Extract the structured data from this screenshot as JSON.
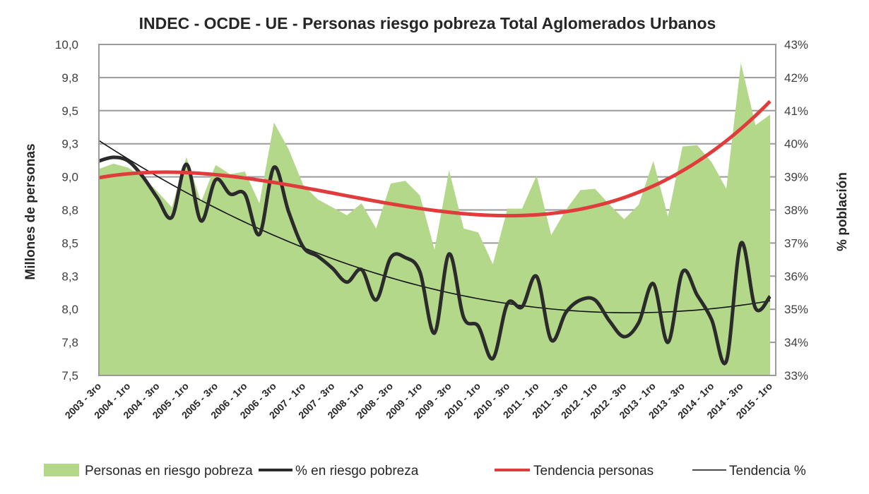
{
  "chart_data": {
    "type": "area+line",
    "title": "INDEC - OCDE - UE - Personas riesgo pobreza Total Aglomerados Urbanos",
    "ylabel": "Millones de personas",
    "y2label": "% población",
    "ylim": [
      7.5,
      10.0
    ],
    "y2lim": [
      33,
      43
    ],
    "y_ticks": [
      "7,5",
      "7,8",
      "8,0",
      "8,3",
      "8,5",
      "8,8",
      "9,0",
      "9,3",
      "9,5",
      "9,8",
      "10,0"
    ],
    "y2_ticks": [
      "33%",
      "34%",
      "35%",
      "36%",
      "37%",
      "38%",
      "39%",
      "40%",
      "41%",
      "42%",
      "43%"
    ],
    "grid": true,
    "legend_position": "bottom",
    "x_labels": [
      "2003 - 3ro",
      "2004 - 1ro",
      "2004 - 3ro",
      "2005 - 1ro",
      "2005 - 3ro",
      "2006 - 1ro",
      "2006 - 3ro",
      "2007 - 1ro",
      "2007 - 3ro",
      "2008 - 1ro",
      "2008 - 3ro",
      "2009 - 1ro",
      "2009 - 3ro",
      "2010 - 1ro",
      "2010 - 3ro",
      "2011 - 1ro",
      "2011 - 3ro",
      "2012 - 1ro",
      "2012 - 3ro",
      "2013 - 1ro",
      "2013 - 3ro",
      "2014 - 1ro",
      "2014 - 3ro",
      "2015 - 1ro"
    ],
    "series": [
      {
        "name": "Personas en riesgo pobreza",
        "type": "area",
        "axis": "left",
        "color": "#b3d88a",
        "values": [
          9.06,
          9.1,
          9.07,
          9.0,
          8.89,
          8.77,
          9.15,
          8.81,
          9.09,
          9.02,
          9.04,
          8.8,
          9.41,
          9.21,
          8.94,
          8.83,
          8.77,
          8.71,
          8.8,
          8.61,
          8.95,
          8.97,
          8.86,
          8.45,
          9.05,
          8.61,
          8.58,
          8.34,
          8.76,
          8.76,
          9.01,
          8.56,
          8.75,
          8.9,
          8.91,
          8.79,
          8.68,
          8.79,
          9.12,
          8.7,
          9.23,
          9.24,
          9.11,
          8.91,
          9.86,
          9.39,
          9.47
        ]
      },
      {
        "name": "% en riesgo pobreza",
        "type": "line",
        "axis": "right",
        "color": "#2b2b2b",
        "values": [
          39.48,
          39.59,
          39.48,
          39.01,
          38.37,
          37.78,
          39.38,
          37.67,
          38.91,
          38.48,
          38.48,
          37.26,
          39.29,
          37.95,
          36.88,
          36.6,
          36.24,
          35.82,
          36.2,
          35.28,
          36.56,
          36.56,
          36.13,
          34.28,
          36.67,
          34.75,
          34.49,
          33.51,
          35.17,
          35.07,
          35.99,
          34.07,
          34.9,
          35.28,
          35.28,
          34.64,
          34.17,
          34.6,
          35.77,
          34.0,
          36.13,
          35.43,
          34.68,
          33.43,
          36.99,
          35.03,
          35.39
        ]
      },
      {
        "name": "Tendencia personas",
        "type": "trend",
        "of": 0,
        "order": 3,
        "color": "#e03c3c"
      },
      {
        "name": "Tendencia %",
        "type": "trend",
        "of": 1,
        "order": 2,
        "color": "#111111"
      }
    ]
  }
}
